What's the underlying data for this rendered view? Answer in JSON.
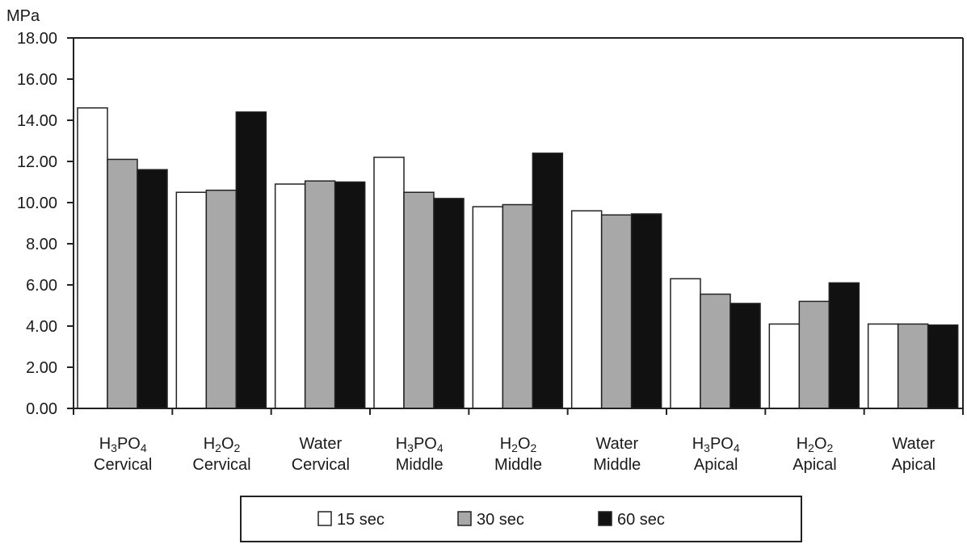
{
  "chart_data": {
    "type": "bar",
    "ylabel": "MPa",
    "ylim": [
      0,
      18
    ],
    "ytick_labels": [
      "0.00",
      "2.00",
      "4.00",
      "6.00",
      "8.00",
      "10.00",
      "12.00",
      "14.00",
      "16.00",
      "18.00"
    ],
    "grid": false,
    "legend_position": "bottom",
    "categories": [
      {
        "label": "H3PO4 Cervical",
        "line1": [
          {
            "t": "H"
          },
          {
            "t": "3",
            "sub": true
          },
          {
            "t": "PO"
          },
          {
            "t": "4",
            "sub": true
          }
        ],
        "line2": "Cervical"
      },
      {
        "label": "H2O2 Cervical",
        "line1": [
          {
            "t": "H"
          },
          {
            "t": "2",
            "sub": true
          },
          {
            "t": "O"
          },
          {
            "t": "2",
            "sub": true
          }
        ],
        "line2": "Cervical"
      },
      {
        "label": "Water Cervical",
        "line1": [
          {
            "t": "Water"
          }
        ],
        "line2": "Cervical"
      },
      {
        "label": "H3PO4 Middle",
        "line1": [
          {
            "t": "H"
          },
          {
            "t": "3",
            "sub": true
          },
          {
            "t": "PO"
          },
          {
            "t": "4",
            "sub": true
          }
        ],
        "line2": "Middle"
      },
      {
        "label": "H2O2 Middle",
        "line1": [
          {
            "t": "H"
          },
          {
            "t": "2",
            "sub": true
          },
          {
            "t": "O"
          },
          {
            "t": "2",
            "sub": true
          }
        ],
        "line2": "Middle"
      },
      {
        "label": "Water Middle",
        "line1": [
          {
            "t": "Water"
          }
        ],
        "line2": "Middle"
      },
      {
        "label": "H3PO4 Apical",
        "line1": [
          {
            "t": "H"
          },
          {
            "t": "3",
            "sub": true
          },
          {
            "t": "PO"
          },
          {
            "t": "4",
            "sub": true
          }
        ],
        "line2": "Apical"
      },
      {
        "label": "H2O2 Apical",
        "line1": [
          {
            "t": "H"
          },
          {
            "t": "2",
            "sub": true
          },
          {
            "t": "O"
          },
          {
            "t": "2",
            "sub": true
          }
        ],
        "line2": "Apical"
      },
      {
        "label": "Water Apical",
        "line1": [
          {
            "t": "Water"
          }
        ],
        "line2": "Apical"
      }
    ],
    "series": [
      {
        "name": "15 sec",
        "color": "#ffffff",
        "values": [
          14.6,
          10.5,
          10.9,
          12.2,
          9.8,
          9.6,
          6.3,
          4.1,
          4.1
        ]
      },
      {
        "name": "30 sec",
        "color": "#a8a8a8",
        "values": [
          12.1,
          10.6,
          11.05,
          10.5,
          9.9,
          9.4,
          5.55,
          5.2,
          4.1
        ]
      },
      {
        "name": "60 sec",
        "color": "#111111",
        "values": [
          11.6,
          14.4,
          11.0,
          10.2,
          12.4,
          9.45,
          5.1,
          6.1,
          4.05
        ]
      }
    ]
  }
}
